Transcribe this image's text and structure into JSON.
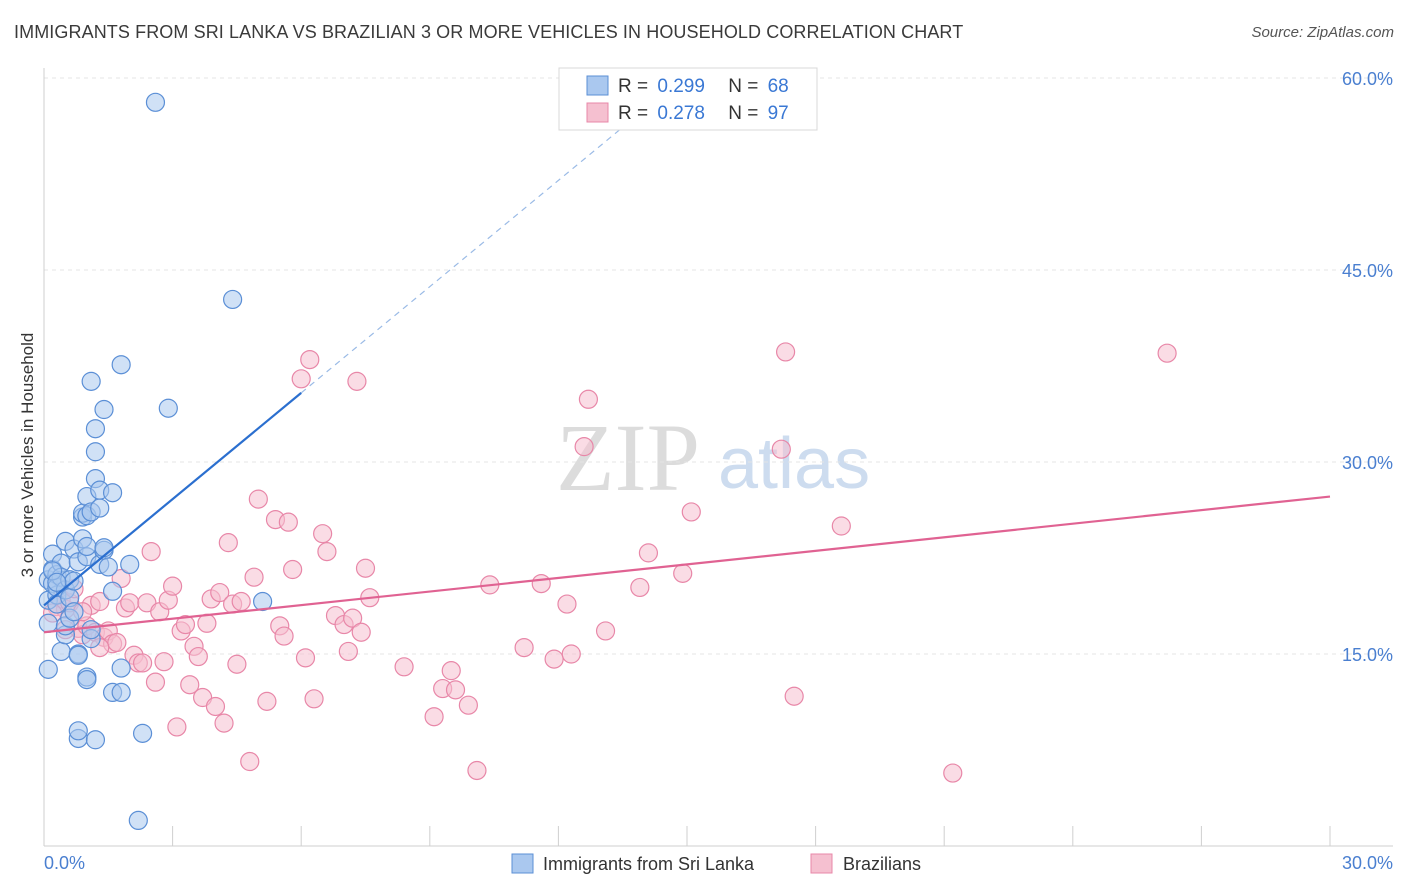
{
  "title": "IMMIGRANTS FROM SRI LANKA VS BRAZILIAN 3 OR MORE VEHICLES IN HOUSEHOLD CORRELATION CHART",
  "source": "Source: ZipAtlas.com",
  "watermark": {
    "zip": "ZIP",
    "atlas": "atlas"
  },
  "colors": {
    "blue_fill": "#aac8ef",
    "blue_stroke": "#5b8fd6",
    "blue_line": "#2b6fcf",
    "pink_fill": "#f5c0d0",
    "pink_stroke": "#e887a8",
    "pink_line": "#e06292",
    "tick_label": "#4a7fd0",
    "grid": "#e4e4e4"
  },
  "legend": [
    {
      "r_label": "R =",
      "r_value": "0.299",
      "n_label": "N =",
      "n_value": "68"
    },
    {
      "r_label": "R =",
      "r_value": "0.278",
      "n_label": "N =",
      "n_value": "97"
    }
  ],
  "chart_data": {
    "type": "scatter",
    "xlabel": "",
    "ylabel": "3 or more Vehicles in Household",
    "xlim": [
      0,
      30
    ],
    "ylim": [
      0,
      60
    ],
    "y_ticks": [
      {
        "value": 15,
        "label": "15.0%"
      },
      {
        "value": 30,
        "label": "30.0%"
      },
      {
        "value": 45,
        "label": "45.0%"
      },
      {
        "value": 60,
        "label": "60.0%"
      }
    ],
    "x_tick_labels": [
      {
        "value": 0,
        "label": "0.0%"
      },
      {
        "value": 30,
        "label": "30.0%"
      }
    ],
    "x_minor_ticks": [
      3,
      6,
      9,
      12,
      15,
      18,
      21,
      24,
      27,
      30
    ],
    "series": [
      {
        "name": "Immigrants from Sri Lanka",
        "r": 0.299,
        "n": 68,
        "trend": {
          "x0": 0.0,
          "y0": 18.8,
          "x1": 6.0,
          "y1": 35.4,
          "dash_to_x": 14.5
        },
        "points": [
          [
            0.1,
            13.8
          ],
          [
            0.1,
            17.4
          ],
          [
            0.1,
            19.2
          ],
          [
            0.1,
            20.8
          ],
          [
            0.2,
            21.6
          ],
          [
            0.2,
            22.8
          ],
          [
            0.2,
            20.5
          ],
          [
            0.3,
            19.6
          ],
          [
            0.3,
            21.2
          ],
          [
            0.3,
            18.9
          ],
          [
            0.3,
            20.2
          ],
          [
            0.4,
            22.1
          ],
          [
            0.4,
            21.0
          ],
          [
            0.4,
            15.2
          ],
          [
            0.5,
            16.5
          ],
          [
            0.5,
            23.8
          ],
          [
            0.5,
            17.2
          ],
          [
            0.5,
            20.0
          ],
          [
            0.6,
            19.4
          ],
          [
            0.6,
            20.8
          ],
          [
            0.6,
            17.8
          ],
          [
            0.7,
            18.3
          ],
          [
            0.7,
            23.2
          ],
          [
            0.7,
            20.7
          ],
          [
            0.8,
            22.2
          ],
          [
            0.8,
            15.0
          ],
          [
            0.8,
            14.9
          ],
          [
            0.8,
            8.4
          ],
          [
            0.8,
            9.0
          ],
          [
            0.9,
            25.7
          ],
          [
            0.9,
            26.0
          ],
          [
            0.9,
            24.0
          ],
          [
            1.0,
            27.3
          ],
          [
            1.0,
            25.8
          ],
          [
            1.0,
            22.6
          ],
          [
            1.0,
            23.4
          ],
          [
            1.0,
            13.2
          ],
          [
            1.0,
            13.0
          ],
          [
            1.1,
            26.1
          ],
          [
            1.1,
            36.3
          ],
          [
            1.1,
            16.2
          ],
          [
            1.1,
            16.9
          ],
          [
            1.2,
            30.8
          ],
          [
            1.2,
            32.6
          ],
          [
            1.2,
            28.7
          ],
          [
            1.2,
            8.3
          ],
          [
            1.3,
            22.0
          ],
          [
            1.3,
            27.8
          ],
          [
            1.3,
            26.4
          ],
          [
            1.4,
            34.1
          ],
          [
            1.4,
            23.1
          ],
          [
            1.4,
            23.3
          ],
          [
            1.5,
            21.8
          ],
          [
            1.6,
            27.6
          ],
          [
            1.6,
            19.9
          ],
          [
            1.6,
            12.0
          ],
          [
            1.8,
            37.6
          ],
          [
            1.8,
            13.9
          ],
          [
            1.8,
            12.0
          ],
          [
            2.0,
            22.0
          ],
          [
            2.2,
            2.0
          ],
          [
            2.3,
            8.8
          ],
          [
            2.6,
            58.1
          ],
          [
            2.9,
            34.2
          ],
          [
            4.4,
            42.7
          ],
          [
            5.1,
            19.1
          ],
          [
            0.2,
            21.5
          ],
          [
            0.3,
            20.6
          ]
        ]
      },
      {
        "name": "Brazilians",
        "r": 0.278,
        "n": 97,
        "trend": {
          "x0": 0.0,
          "y0": 16.7,
          "x1": 30.0,
          "y1": 27.3
        },
        "points": [
          [
            0.3,
            18.7
          ],
          [
            0.4,
            19.3
          ],
          [
            0.5,
            18.5
          ],
          [
            0.6,
            19.0
          ],
          [
            0.7,
            20.1
          ],
          [
            0.8,
            17.0
          ],
          [
            0.9,
            16.5
          ],
          [
            1.0,
            17.2
          ],
          [
            1.1,
            18.8
          ],
          [
            1.2,
            16.7
          ],
          [
            1.3,
            19.1
          ],
          [
            1.4,
            16.3
          ],
          [
            1.5,
            16.8
          ],
          [
            1.6,
            15.8
          ],
          [
            1.7,
            15.9
          ],
          [
            1.8,
            20.9
          ],
          [
            1.9,
            18.6
          ],
          [
            2.0,
            19.0
          ],
          [
            2.1,
            14.9
          ],
          [
            2.2,
            14.3
          ],
          [
            2.3,
            14.3
          ],
          [
            2.4,
            19.0
          ],
          [
            2.5,
            23.0
          ],
          [
            2.6,
            12.8
          ],
          [
            2.7,
            18.3
          ],
          [
            2.8,
            14.4
          ],
          [
            2.9,
            19.2
          ],
          [
            3.0,
            20.3
          ],
          [
            3.1,
            9.3
          ],
          [
            3.2,
            16.8
          ],
          [
            3.3,
            17.3
          ],
          [
            3.4,
            12.6
          ],
          [
            3.5,
            15.6
          ],
          [
            3.6,
            14.8
          ],
          [
            3.7,
            11.6
          ],
          [
            3.8,
            17.4
          ],
          [
            3.9,
            19.3
          ],
          [
            4.0,
            10.9
          ],
          [
            4.1,
            19.8
          ],
          [
            4.2,
            9.6
          ],
          [
            4.3,
            23.7
          ],
          [
            4.4,
            18.9
          ],
          [
            4.5,
            14.2
          ],
          [
            4.6,
            19.1
          ],
          [
            4.8,
            6.6
          ],
          [
            4.9,
            21.0
          ],
          [
            5.0,
            27.1
          ],
          [
            5.2,
            11.3
          ],
          [
            5.4,
            25.5
          ],
          [
            5.5,
            17.2
          ],
          [
            5.6,
            16.4
          ],
          [
            5.7,
            25.3
          ],
          [
            5.8,
            21.6
          ],
          [
            6.0,
            36.5
          ],
          [
            6.1,
            14.7
          ],
          [
            6.2,
            38.0
          ],
          [
            6.3,
            11.5
          ],
          [
            6.5,
            24.4
          ],
          [
            6.6,
            23.0
          ],
          [
            6.8,
            18.0
          ],
          [
            7.0,
            17.3
          ],
          [
            7.1,
            15.2
          ],
          [
            7.2,
            17.8
          ],
          [
            7.3,
            36.3
          ],
          [
            7.4,
            16.7
          ],
          [
            7.5,
            21.7
          ],
          [
            7.6,
            19.4
          ],
          [
            8.4,
            14.0
          ],
          [
            9.1,
            10.1
          ],
          [
            9.3,
            12.3
          ],
          [
            9.5,
            13.7
          ],
          [
            9.6,
            12.2
          ],
          [
            9.9,
            11.0
          ],
          [
            10.1,
            5.9
          ],
          [
            10.4,
            20.4
          ],
          [
            11.2,
            15.5
          ],
          [
            11.6,
            20.5
          ],
          [
            11.9,
            14.6
          ],
          [
            12.2,
            18.9
          ],
          [
            12.3,
            15.0
          ],
          [
            12.6,
            31.2
          ],
          [
            12.7,
            34.9
          ],
          [
            13.1,
            16.8
          ],
          [
            13.9,
            20.2
          ],
          [
            14.1,
            22.9
          ],
          [
            14.9,
            21.3
          ],
          [
            15.1,
            26.1
          ],
          [
            17.2,
            31.0
          ],
          [
            17.3,
            38.6
          ],
          [
            17.5,
            11.7
          ],
          [
            18.6,
            25.0
          ],
          [
            21.2,
            5.7
          ],
          [
            26.2,
            38.5
          ],
          [
            0.2,
            18.2
          ],
          [
            0.5,
            16.9
          ],
          [
            0.9,
            18.3
          ],
          [
            1.3,
            15.5
          ]
        ]
      }
    ]
  },
  "bottom_legend": [
    {
      "label": "Immigrants from Sri Lanka"
    },
    {
      "label": "Brazilians"
    }
  ]
}
